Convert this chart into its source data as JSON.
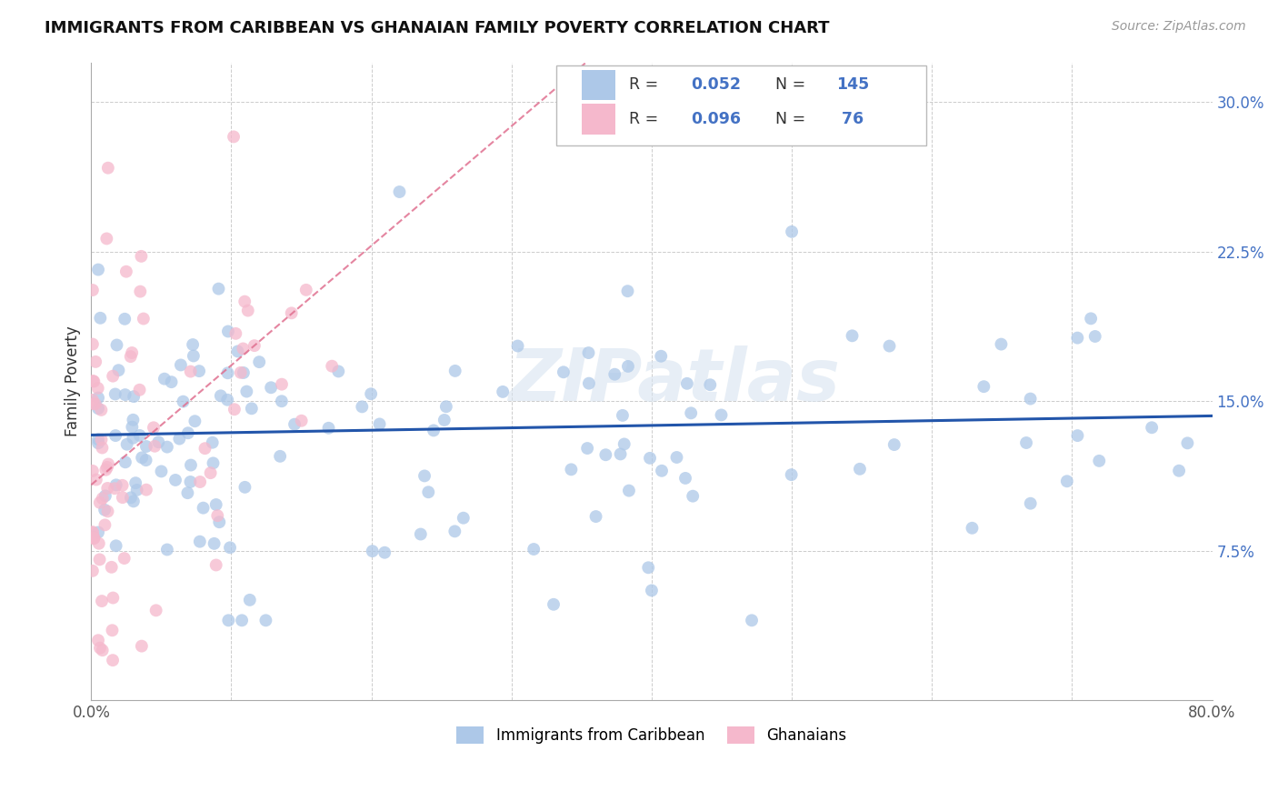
{
  "title": "IMMIGRANTS FROM CARIBBEAN VS GHANAIAN FAMILY POVERTY CORRELATION CHART",
  "source": "Source: ZipAtlas.com",
  "ylabel": "Family Poverty",
  "xlim": [
    0.0,
    0.8
  ],
  "ylim": [
    0.0,
    0.32
  ],
  "xticks": [
    0.0,
    0.1,
    0.2,
    0.3,
    0.4,
    0.5,
    0.6,
    0.7,
    0.8
  ],
  "xticklabels": [
    "0.0%",
    "",
    "",
    "",
    "",
    "",
    "",
    "",
    "80.0%"
  ],
  "yticks": [
    0.075,
    0.15,
    0.225,
    0.3
  ],
  "yticklabels": [
    "7.5%",
    "15.0%",
    "22.5%",
    "30.0%"
  ],
  "legend_R1": "0.052",
  "legend_N1": "145",
  "legend_R2": "0.096",
  "legend_N2": " 76",
  "color_caribbean": "#adc8e8",
  "color_ghanaian": "#f5b8cc",
  "color_trendline_caribbean": "#2255aa",
  "color_trendline_ghanaian": "#e07090",
  "watermark": "ZIPatlas",
  "carib_intercept": 0.133,
  "carib_slope": 0.012,
  "ghana_intercept": 0.108,
  "ghana_slope": 0.6
}
